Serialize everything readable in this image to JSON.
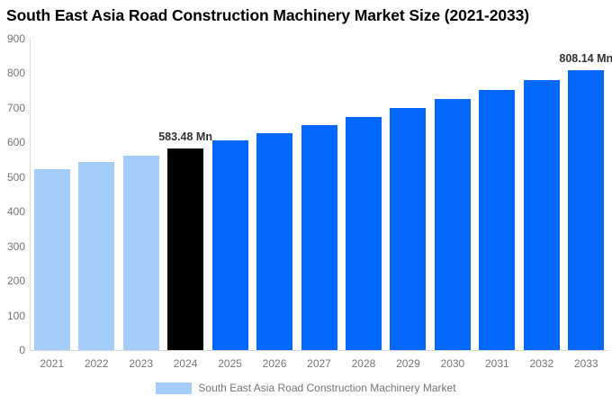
{
  "chart_data": {
    "type": "bar",
    "title": "South East Asia Road Construction Machinery Market Size (2021-2033)",
    "categories": [
      "2021",
      "2022",
      "2023",
      "2024",
      "2025",
      "2026",
      "2027",
      "2028",
      "2029",
      "2030",
      "2031",
      "2032",
      "2033"
    ],
    "values": [
      523.4,
      542.8,
      562.7,
      583.48,
      605.0,
      627.3,
      650.4,
      674.4,
      699.3,
      725.1,
      751.8,
      779.5,
      808.14
    ],
    "unit": "Mn",
    "xlabel": "",
    "ylabel": "",
    "ylim": [
      0,
      900
    ],
    "yticks": [
      0,
      100,
      200,
      300,
      400,
      500,
      600,
      700,
      800,
      900
    ],
    "grid": false,
    "bar_roles": [
      "historical",
      "historical",
      "historical",
      "highlight",
      "forecast",
      "forecast",
      "forecast",
      "forecast",
      "forecast",
      "forecast",
      "forecast",
      "forecast",
      "forecast"
    ],
    "colors": {
      "historical": "#a5cdfa",
      "highlight": "#000000",
      "forecast": "#0568fd",
      "axis_line": "#d9d9d9",
      "tick_text": "#757575",
      "data_label_text": "#333333",
      "title_text": "#000000"
    },
    "data_labels": [
      {
        "category": "2024",
        "text": "583.48 Mn"
      },
      {
        "category": "2033",
        "text": "808.14 Mn"
      }
    ],
    "legend": {
      "position": "bottom",
      "items": [
        {
          "label": "South East Asia Road Construction Machinery Market",
          "swatch_color": "#a5cdfa"
        }
      ]
    }
  }
}
